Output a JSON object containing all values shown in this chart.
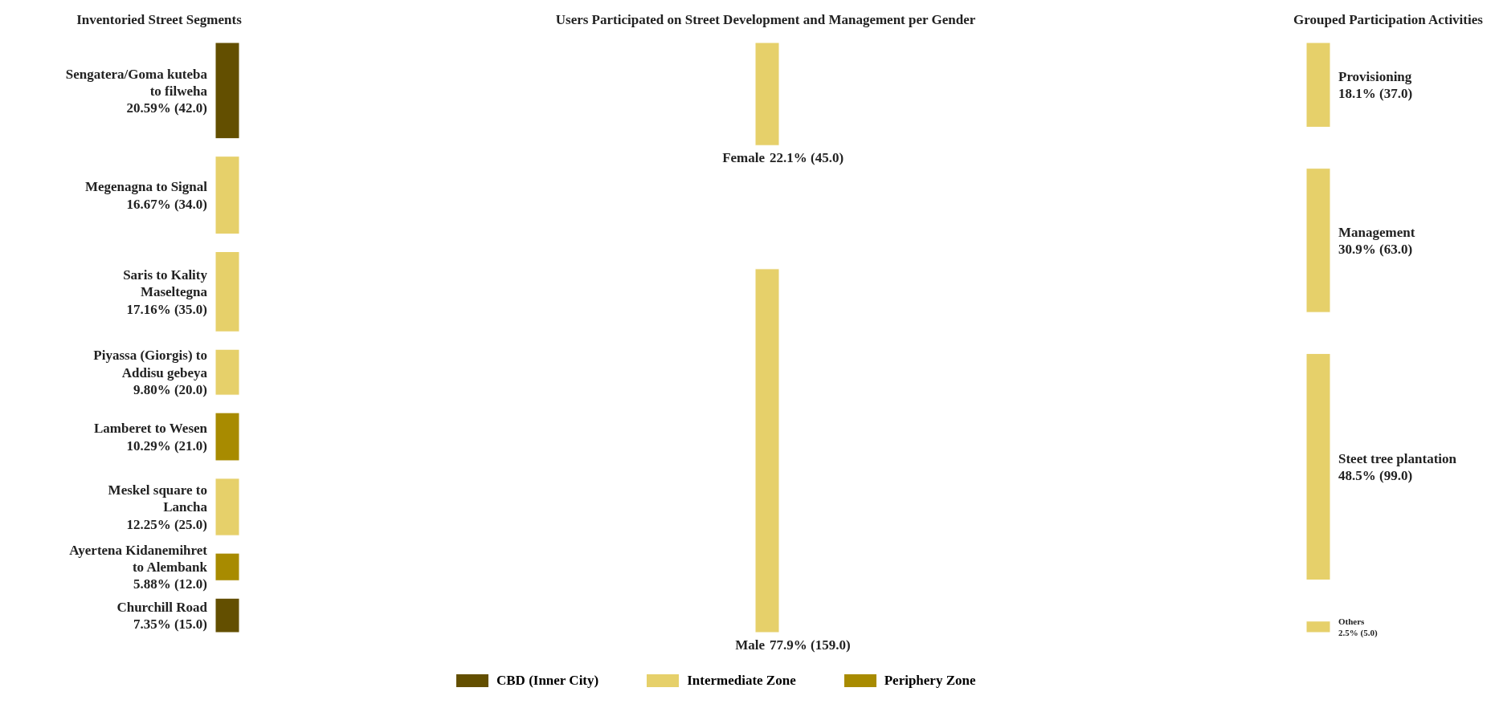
{
  "chart_data": [
    {
      "type": "other",
      "title": "Inventoried Street Segments",
      "categories": [
        "Sengatera/Goma kuteba to filweha",
        "Megenagna to Signal",
        "Saris to Kality Maseltegna",
        "Piyassa (Giorgis) to Addisu gebeya",
        "Lamberet to Wesen",
        "Meskel square to Lancha",
        "Ayertena Kidanemihret to Alembank",
        "Churchill Road"
      ],
      "series": [
        {
          "name": "CBD (Inner City)",
          "color": "#634f00",
          "values": [
            42,
            null,
            null,
            null,
            null,
            null,
            null,
            15
          ],
          "value_labels": [
            "20.59% (42.0)",
            null,
            null,
            null,
            null,
            null,
            null,
            "7.35% (15.0)"
          ]
        },
        {
          "name": "Intermediate Zone",
          "color": "#e6d06a",
          "values": [
            null,
            34,
            35,
            20,
            null,
            25,
            null,
            null
          ],
          "value_labels": [
            null,
            "16.67% (34.0)",
            "17.16% (35.0)",
            "9.80% (20.0)",
            null,
            "12.25% (25.0)",
            null,
            null
          ]
        },
        {
          "name": "Periphery Zone",
          "color": "#a88b00",
          "values": [
            null,
            null,
            null,
            null,
            21,
            null,
            12,
            null
          ],
          "value_labels": [
            null,
            null,
            null,
            null,
            "10.29% (21.0)",
            null,
            "5.88% (12.0)",
            null
          ]
        }
      ],
      "legend": "bottom"
    },
    {
      "type": "other",
      "title": "Users Participated on Street Development and Management per Gender",
      "categories": [
        "Female",
        "Male"
      ],
      "values": [
        45,
        159
      ],
      "value_labels": [
        "22.1% (45.0)",
        "77.9% (159.0)"
      ],
      "color": "#e6d06a"
    },
    {
      "type": "other",
      "title": "Grouped Participation Activities",
      "categories": [
        "Provisioning",
        "Management",
        "Steet tree plantation",
        "Others"
      ],
      "values": [
        37,
        63,
        99,
        5
      ],
      "value_labels": [
        "18.1% (37.0)",
        "30.9% (63.0)",
        "48.5% (99.0)",
        "2.5% (5.0)"
      ],
      "color": "#e6d06a"
    }
  ]
}
